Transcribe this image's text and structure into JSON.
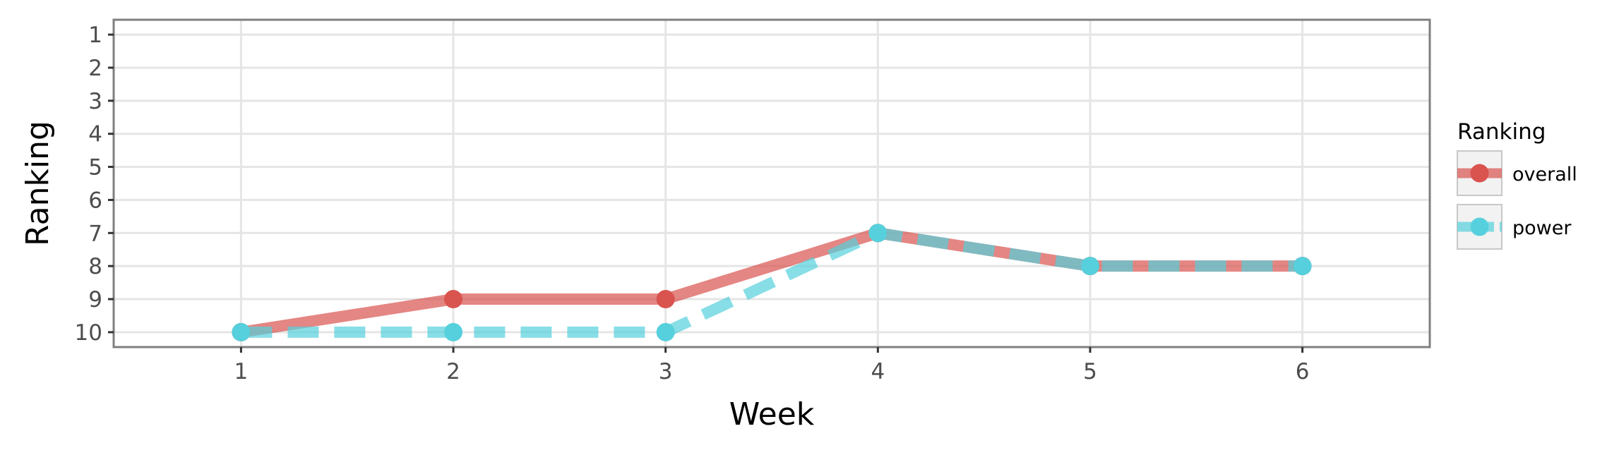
{
  "chart_data": {
    "type": "line",
    "xlabel": "Week",
    "ylabel": "Ranking",
    "x": [
      1,
      2,
      3,
      4,
      5,
      6
    ],
    "xlim": [
      0.4,
      6.6
    ],
    "ylim": [
      10.45,
      0.55
    ],
    "y_reversed": true,
    "xticks": [
      "1",
      "2",
      "3",
      "4",
      "5",
      "6"
    ],
    "yticks": [
      "1",
      "2",
      "3",
      "4",
      "5",
      "6",
      "7",
      "8",
      "9",
      "10"
    ],
    "grid": true,
    "legend": {
      "title": "Ranking",
      "position": "right"
    },
    "series": [
      {
        "name": "overall",
        "values": [
          10,
          9,
          9,
          7,
          8,
          8
        ],
        "color": "#d9534f",
        "style": "solid"
      },
      {
        "name": "power",
        "values": [
          10,
          10,
          10,
          7,
          8,
          8
        ],
        "color": "#56d0dc",
        "style": "dashed"
      }
    ]
  }
}
